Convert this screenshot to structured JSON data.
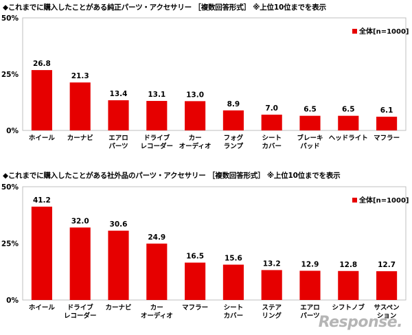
{
  "chart_data": [
    {
      "type": "bar",
      "title": "◆これまでに購入したことがある純正パーツ・アクセサリー ［複数回答形式］ ※上位10位までを表示",
      "legend": "全体[n=1000]",
      "legend_position": "top-right",
      "color": "#e60000",
      "ylim": [
        0,
        50
      ],
      "yticks": [
        "0%",
        "25%",
        "50%"
      ],
      "categories": [
        "ホイール",
        "カーナビ",
        "エアロ\nパーツ",
        "ドライブ\nレコーダー",
        "カー\nオーディオ",
        "フォグ\nランプ",
        "シート\nカバー",
        "ブレーキ\nパッド",
        "ヘッドライト",
        "マフラー"
      ],
      "values": [
        26.8,
        21.3,
        13.4,
        13.1,
        13.0,
        8.9,
        7.0,
        6.5,
        6.5,
        6.1
      ],
      "value_labels": [
        "26.8",
        "21.3",
        "13.4",
        "13.1",
        "13.0",
        "8.9",
        "7.0",
        "6.5",
        "6.5",
        "6.1"
      ]
    },
    {
      "type": "bar",
      "title": "◆これまでに購入したことがある社外品のパーツ・アクセサリー ［複数回答形式］ ※上位10位までを表示",
      "legend": "全体[n=1000]",
      "legend_position": "top-right",
      "color": "#e60000",
      "ylim": [
        0,
        50
      ],
      "yticks": [
        "0%",
        "25%",
        "50%"
      ],
      "categories": [
        "ホイール",
        "ドライブ\nレコーダー",
        "カーナビ",
        "カー\nオーディオ",
        "マフラー",
        "シート\nカバー",
        "ステア\nリング",
        "エアロ\nパーツ",
        "シフトノブ",
        "サスペン\nション"
      ],
      "values": [
        41.2,
        32.0,
        30.6,
        24.9,
        16.5,
        15.6,
        13.2,
        12.9,
        12.8,
        12.7
      ],
      "value_labels": [
        "41.2",
        "32.0",
        "30.6",
        "24.9",
        "16.5",
        "15.6",
        "13.2",
        "12.9",
        "12.8",
        "12.7"
      ]
    }
  ],
  "watermark": "Response."
}
